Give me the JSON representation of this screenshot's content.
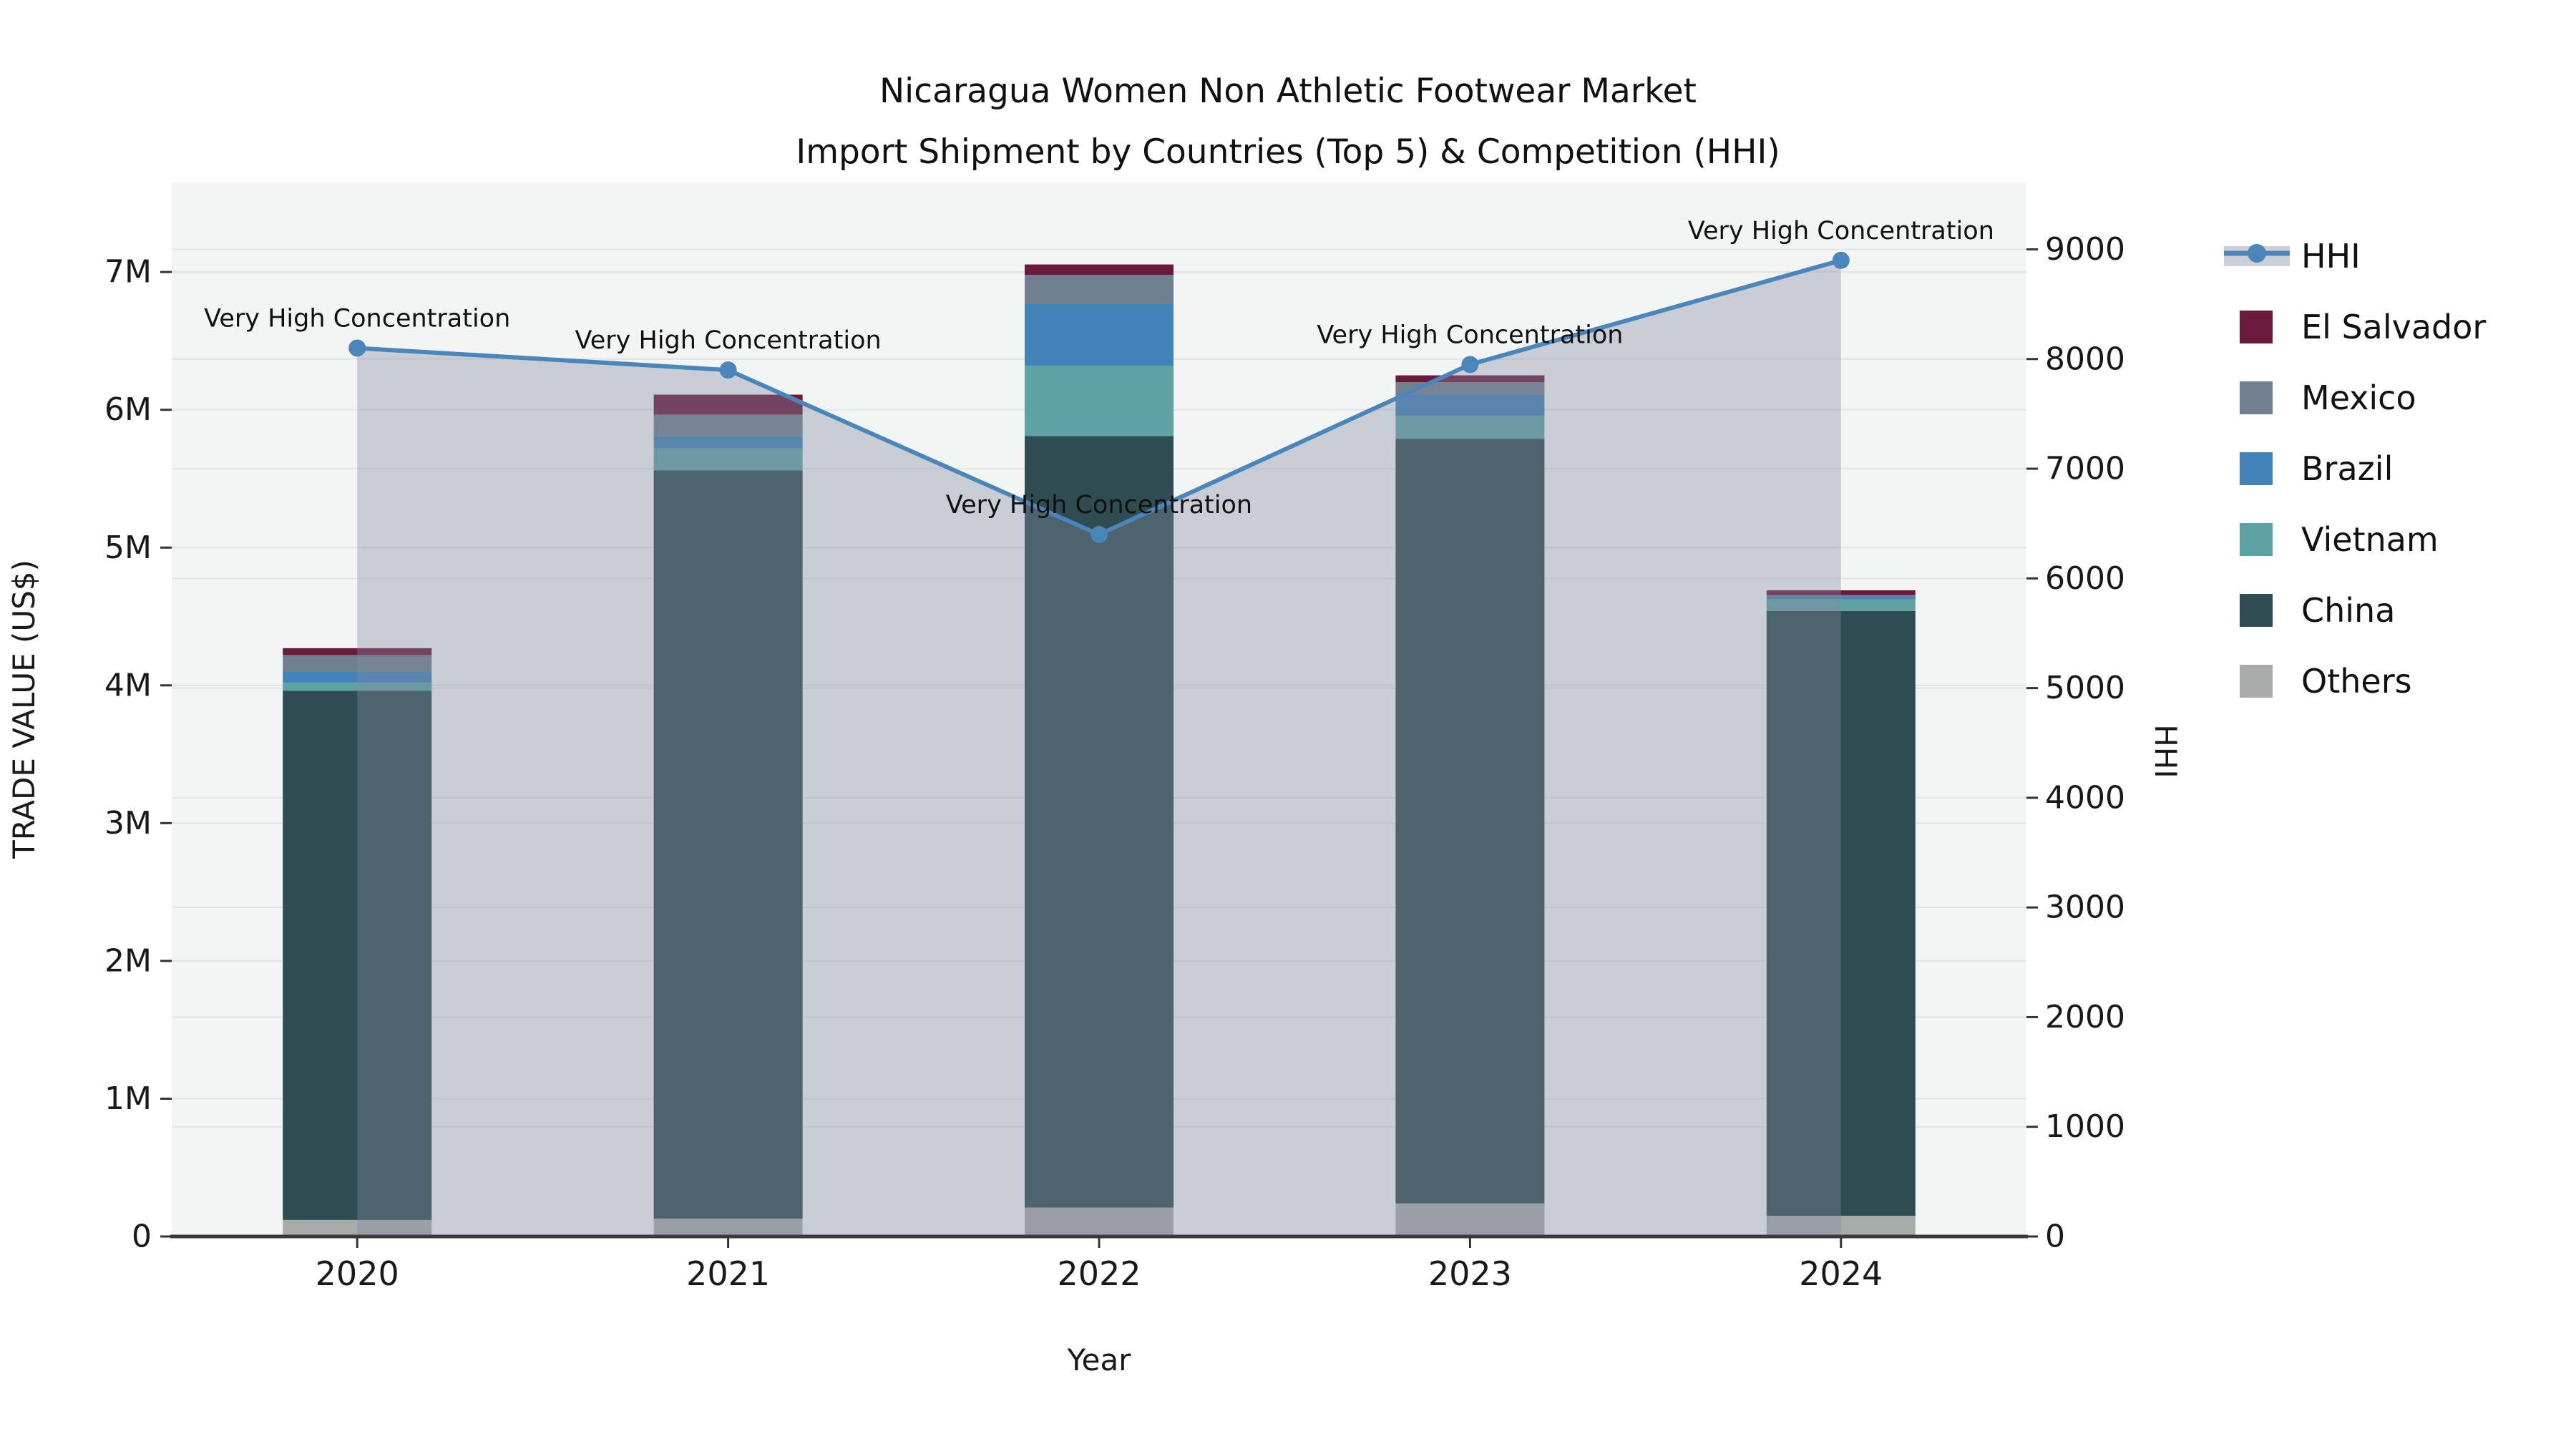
{
  "title": {
    "line1": "Nicaragua Women Non Athletic Footwear Market",
    "line2": "Import Shipment by Countries (Top 5) & Competition (HHI)"
  },
  "axes": {
    "x_label": "Year",
    "y_left_label": "TRADE VALUE (US$)",
    "y_right_label": "HHI"
  },
  "chart_data": {
    "type": "combo stacked-bar + line + area (dual axis)",
    "categories": [
      "2020",
      "2021",
      "2022",
      "2023",
      "2024"
    ],
    "xlabel": "Year",
    "ylabel_left": "TRADE VALUE (US$)",
    "ylabel_right": "HHI",
    "ylim_left_musd": [
      0,
      7.65
    ],
    "ylim_right": [
      0,
      9610
    ],
    "left_ticks": [
      {
        "value_musd": 0,
        "label": "0"
      },
      {
        "value_musd": 1,
        "label": "1M"
      },
      {
        "value_musd": 2,
        "label": "2M"
      },
      {
        "value_musd": 3,
        "label": "3M"
      },
      {
        "value_musd": 4,
        "label": "4M"
      },
      {
        "value_musd": 5,
        "label": "5M"
      },
      {
        "value_musd": 6,
        "label": "6M"
      },
      {
        "value_musd": 7,
        "label": "7M"
      }
    ],
    "right_ticks": [
      {
        "value": 0,
        "label": "0"
      },
      {
        "value": 1000,
        "label": "1000"
      },
      {
        "value": 2000,
        "label": "2000"
      },
      {
        "value": 3000,
        "label": "3000"
      },
      {
        "value": 4000,
        "label": "4000"
      },
      {
        "value": 5000,
        "label": "5000"
      },
      {
        "value": 6000,
        "label": "6000"
      },
      {
        "value": 7000,
        "label": "7000"
      },
      {
        "value": 8000,
        "label": "8000"
      },
      {
        "value": 9000,
        "label": "9000"
      }
    ],
    "stack_order_bottom_to_top": [
      "Others",
      "China",
      "Vietnam",
      "Brazil",
      "Mexico",
      "El Salvador"
    ],
    "series": [
      {
        "name": "Others",
        "color": "#a9abab",
        "values_musd": [
          0.12,
          0.13,
          0.21,
          0.24,
          0.15
        ]
      },
      {
        "name": "China",
        "color": "#2f4c50",
        "values_musd": [
          3.84,
          5.43,
          5.6,
          5.55,
          4.39
        ]
      },
      {
        "name": "Vietnam",
        "color": "#5fa2a3",
        "values_musd": [
          0.06,
          0.16,
          0.51,
          0.165,
          0.085
        ]
      },
      {
        "name": "Brazil",
        "color": "#4383b8",
        "values_musd": [
          0.08,
          0.09,
          0.45,
          0.155,
          0.02
        ]
      },
      {
        "name": "Mexico",
        "color": "#71808f",
        "values_musd": [
          0.12,
          0.155,
          0.21,
          0.09,
          0.01
        ]
      },
      {
        "name": "El Salvador",
        "color": "#6a1b3d",
        "values_musd": [
          0.05,
          0.145,
          0.075,
          0.05,
          0.035
        ]
      }
    ],
    "bar_totals_musd": [
      4.27,
      6.11,
      7.055,
      6.25,
      4.69
    ],
    "hhi": {
      "name": "HHI",
      "line_color": "#4a86ba",
      "area_fill": "rgba(129,139,160,0.37)",
      "values": [
        8100,
        7900,
        6400,
        7950,
        8900
      ]
    },
    "annotations": [
      {
        "category": "2020",
        "text": "Very High Concentration"
      },
      {
        "category": "2021",
        "text": "Very High Concentration"
      },
      {
        "category": "2022",
        "text": "Very High Concentration"
      },
      {
        "category": "2023",
        "text": "Very High Concentration"
      },
      {
        "category": "2024",
        "text": "Very High Concentration"
      }
    ],
    "legend": {
      "entries": [
        "HHI",
        "El Salvador",
        "Mexico",
        "Brazil",
        "Vietnam",
        "China",
        "Others"
      ],
      "hhi_patch_color": "#ccd0d6"
    },
    "style": {
      "plot_bg": "#f3f4f4",
      "grid_color": "#e2e4e4",
      "spine_color": "#3a3a3a",
      "tick_color": "#333333"
    }
  }
}
